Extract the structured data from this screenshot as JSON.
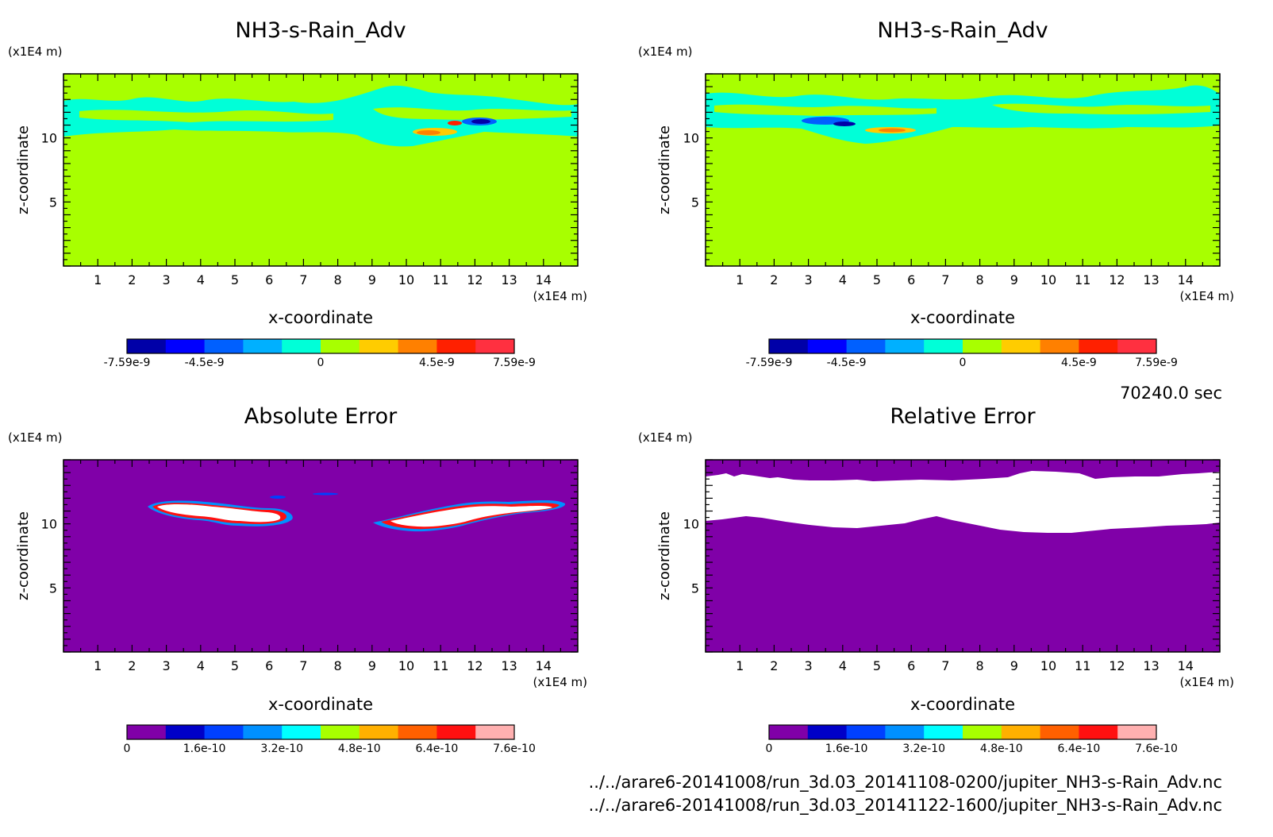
{
  "figure": {
    "timestamp": "70240.0 sec",
    "file_paths": [
      "../../arare6-20141008/run_3d.03_20141108-0200/jupiter_NH3-s-Rain_Adv.nc",
      "../../arare6-20141008/run_3d.03_20141122-1600/jupiter_NH3-s-Rain_Adv.nc"
    ]
  },
  "chart_data": [
    {
      "type": "heatmap",
      "title": "NH3-s-Rain_Adv",
      "xlabel": "x-coordinate",
      "ylabel": "z-coordinate",
      "x_unit": "(x1E4 m)",
      "y_unit": "(x1E4 m)",
      "xlim": [
        0,
        15
      ],
      "ylim": [
        0,
        15
      ],
      "x_ticks": [
        "1",
        "2",
        "3",
        "4",
        "5",
        "6",
        "7",
        "8",
        "9",
        "10",
        "11",
        "12",
        "13",
        "14"
      ],
      "y_ticks": [
        "5",
        "10"
      ],
      "background_color": "#a8ff00",
      "colorbar": {
        "colors": [
          "#0000a8",
          "#0000ff",
          "#0060ff",
          "#00b0ff",
          "#00ffd8",
          "#a8ff00",
          "#ffcc00",
          "#ff8000",
          "#ff2000",
          "#ff3040"
        ],
        "labels": [
          "-7.59e-9",
          "-4.5e-9",
          "0",
          "4.5e-9",
          "7.59e-9"
        ]
      },
      "features": [
        {
          "desc": "band",
          "color": "#00ffd8"
        },
        {
          "desc": "positive",
          "color": "#ff8000"
        },
        {
          "desc": "negative",
          "color": "#0000a8"
        }
      ]
    },
    {
      "type": "heatmap",
      "title": "NH3-s-Rain_Adv",
      "xlabel": "x-coordinate",
      "ylabel": "z-coordinate",
      "x_unit": "(x1E4 m)",
      "y_unit": "(x1E4 m)",
      "xlim": [
        0,
        15
      ],
      "ylim": [
        0,
        15
      ],
      "x_ticks": [
        "1",
        "2",
        "3",
        "4",
        "5",
        "6",
        "7",
        "8",
        "9",
        "10",
        "11",
        "12",
        "13",
        "14"
      ],
      "y_ticks": [
        "5",
        "10"
      ],
      "background_color": "#a8ff00",
      "colorbar": {
        "colors": [
          "#0000a8",
          "#0000ff",
          "#0060ff",
          "#00b0ff",
          "#00ffd8",
          "#a8ff00",
          "#ffcc00",
          "#ff8000",
          "#ff2000",
          "#ff3040"
        ],
        "labels": [
          "-7.59e-9",
          "-4.5e-9",
          "0",
          "4.5e-9",
          "7.59e-9"
        ]
      }
    },
    {
      "type": "heatmap",
      "title": "Absolute Error",
      "xlabel": "x-coordinate",
      "ylabel": "z-coordinate",
      "x_unit": "(x1E4 m)",
      "y_unit": "(x1E4 m)",
      "xlim": [
        0,
        15
      ],
      "ylim": [
        0,
        15
      ],
      "x_ticks": [
        "1",
        "2",
        "3",
        "4",
        "5",
        "6",
        "7",
        "8",
        "9",
        "10",
        "11",
        "12",
        "13",
        "14"
      ],
      "y_ticks": [
        "5",
        "10"
      ],
      "background_color": "#8000a8",
      "colorbar": {
        "colors": [
          "#8000a8",
          "#0000c8",
          "#0040ff",
          "#0090ff",
          "#00ffff",
          "#a8ff00",
          "#ffb000",
          "#ff6000",
          "#ff1010",
          "#ffb0b0"
        ],
        "labels": [
          "0",
          "1.6e-10",
          "3.2e-10",
          "4.8e-10",
          "6.4e-10",
          "7.6e-10"
        ]
      }
    },
    {
      "type": "heatmap",
      "title": "Relative Error",
      "xlabel": "x-coordinate",
      "ylabel": "z-coordinate",
      "x_unit": "(x1E4 m)",
      "y_unit": "(x1E4 m)",
      "xlim": [
        0,
        15
      ],
      "ylim": [
        0,
        15
      ],
      "x_ticks": [
        "1",
        "2",
        "3",
        "4",
        "5",
        "6",
        "7",
        "8",
        "9",
        "10",
        "11",
        "12",
        "13",
        "14"
      ],
      "y_ticks": [
        "5",
        "10"
      ],
      "background_color": "#8000a8",
      "colorbar": {
        "colors": [
          "#8000a8",
          "#0000c8",
          "#0040ff",
          "#0090ff",
          "#00ffff",
          "#a8ff00",
          "#ffb000",
          "#ff6000",
          "#ff1010",
          "#ffb0b0"
        ],
        "labels": [
          "0",
          "1.6e-10",
          "3.2e-10",
          "4.8e-10",
          "6.4e-10",
          "7.6e-10"
        ]
      }
    }
  ]
}
